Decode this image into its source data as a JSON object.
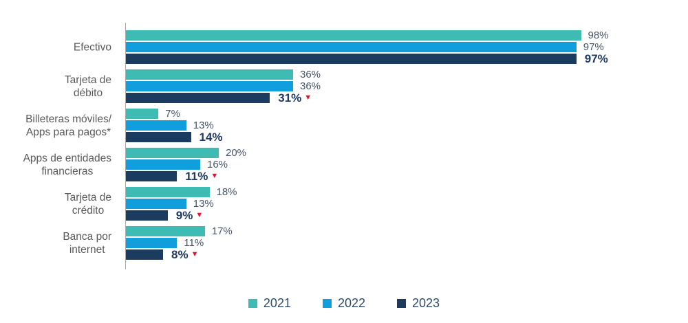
{
  "chart_data": {
    "type": "bar",
    "orientation": "horizontal",
    "title": "",
    "value_suffix": "%",
    "decrease_symbol": "▼",
    "axis_range": [
      0,
      100
    ],
    "legend_position": "bottom",
    "grid": false,
    "categories": [
      "Efectivo",
      "Tarjeta de débito",
      "Billeteras móviles/ Apps para pagos*",
      "Apps de entidades financieras",
      "Tarjeta de crédito",
      "Banca por internet"
    ],
    "category_lines": [
      [
        "Efectivo"
      ],
      [
        "Tarjeta de",
        "débito"
      ],
      [
        "Billeteras móviles/",
        "Apps para pagos*"
      ],
      [
        "Apps de entidades",
        "financieras"
      ],
      [
        "Tarjeta de",
        "crédito"
      ],
      [
        "Banca por",
        "internet"
      ]
    ],
    "series": [
      {
        "name": "2021",
        "color": "#3ebcb4",
        "values": [
          98,
          36,
          7,
          20,
          18,
          17
        ],
        "bold_labels": false,
        "decrease_marker": [
          false,
          false,
          false,
          false,
          false,
          false
        ]
      },
      {
        "name": "2022",
        "color": "#109edd",
        "values": [
          97,
          36,
          13,
          16,
          13,
          11
        ],
        "bold_labels": false,
        "decrease_marker": [
          false,
          false,
          false,
          false,
          false,
          false
        ]
      },
      {
        "name": "2023",
        "color": "#1b3c5e",
        "values": [
          97,
          31,
          14,
          11,
          9,
          8
        ],
        "bold_labels": true,
        "decrease_marker": [
          false,
          true,
          false,
          true,
          true,
          true
        ]
      }
    ]
  },
  "legend": {
    "items": [
      {
        "label": "2021",
        "color": "#3ebcb4"
      },
      {
        "label": "2022",
        "color": "#109edd"
      },
      {
        "label": "2023",
        "color": "#1b3c5e"
      }
    ]
  },
  "colors": {
    "value_label": "#44546a",
    "value_label_bold": "#1f3864",
    "category_label": "#595959",
    "axis_line": "#a9a9a9",
    "decrease_marker": "#e8112d",
    "background": "#ffffff"
  }
}
